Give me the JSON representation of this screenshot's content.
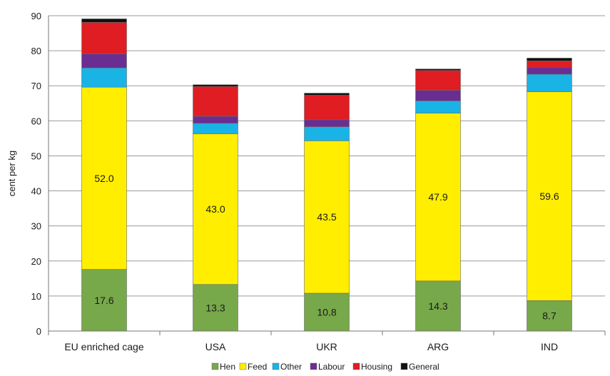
{
  "chart_data": {
    "type": "bar",
    "stacked": true,
    "title": "",
    "xlabel": "",
    "ylabel": "cent per kg",
    "ylim": [
      0,
      90
    ],
    "yticks": [
      0,
      10,
      20,
      30,
      40,
      50,
      60,
      70,
      80,
      90
    ],
    "grid": true,
    "legend_position": "bottom",
    "categories": [
      "EU enriched cage",
      "USA",
      "UKR",
      "ARG",
      "IND"
    ],
    "series": [
      {
        "name": "Hen",
        "color": "#77a84a",
        "values": [
          17.6,
          13.3,
          10.8,
          14.3,
          8.7
        ],
        "labels": [
          "17.6",
          "13.3",
          "10.8",
          "14.3",
          "8.7"
        ]
      },
      {
        "name": "Feed",
        "color": "#ffee00",
        "values": [
          52.0,
          43.0,
          43.5,
          47.9,
          59.6
        ],
        "labels": [
          "52.0",
          "43.0",
          "43.5",
          "47.9",
          "59.6"
        ]
      },
      {
        "name": "Other",
        "color": "#1ab3e6",
        "values": [
          5.5,
          3.0,
          4.0,
          3.5,
          5.0
        ]
      },
      {
        "name": "Labour",
        "color": "#6a2d91",
        "values": [
          4.0,
          2.0,
          2.0,
          3.0,
          2.0
        ]
      },
      {
        "name": "Housing",
        "color": "#e01d22",
        "values": [
          9.0,
          8.5,
          7.0,
          5.7,
          1.8
        ]
      },
      {
        "name": "General",
        "color": "#111111",
        "values": [
          1.0,
          0.5,
          0.6,
          0.4,
          0.8
        ]
      }
    ]
  }
}
